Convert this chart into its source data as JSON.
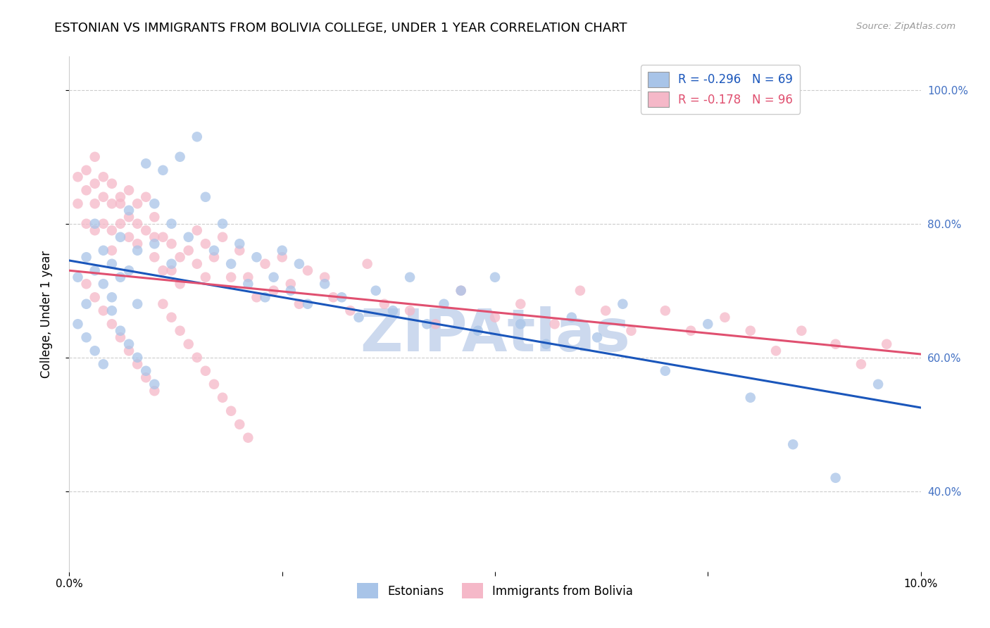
{
  "title": "ESTONIAN VS IMMIGRANTS FROM BOLIVIA COLLEGE, UNDER 1 YEAR CORRELATION CHART",
  "source": "Source: ZipAtlas.com",
  "ylabel_text": "College, Under 1 year",
  "x_min": 0.0,
  "x_max": 0.1,
  "y_min": 0.28,
  "y_max": 1.05,
  "y_ticks": [
    0.4,
    0.6,
    0.8,
    1.0
  ],
  "y_tick_labels": [
    "40.0%",
    "60.0%",
    "80.0%",
    "100.0%"
  ],
  "x_ticks": [
    0.0,
    0.025,
    0.05,
    0.075,
    0.1
  ],
  "x_tick_labels": [
    "0.0%",
    "",
    "",
    "",
    "10.0%"
  ],
  "estonians": {
    "color": "#a8c4e8",
    "line_color": "#1a56bb",
    "trend_x": [
      0.0,
      0.1
    ],
    "trend_y": [
      0.745,
      0.525
    ],
    "x": [
      0.001,
      0.002,
      0.002,
      0.003,
      0.003,
      0.004,
      0.004,
      0.005,
      0.005,
      0.006,
      0.006,
      0.007,
      0.007,
      0.008,
      0.008,
      0.009,
      0.01,
      0.01,
      0.011,
      0.012,
      0.012,
      0.013,
      0.014,
      0.015,
      0.016,
      0.017,
      0.018,
      0.019,
      0.02,
      0.021,
      0.022,
      0.023,
      0.024,
      0.025,
      0.026,
      0.027,
      0.028,
      0.03,
      0.032,
      0.034,
      0.036,
      0.038,
      0.04,
      0.042,
      0.044,
      0.046,
      0.048,
      0.05,
      0.053,
      0.056,
      0.059,
      0.062,
      0.065,
      0.07,
      0.075,
      0.08,
      0.085,
      0.09,
      0.095,
      0.001,
      0.002,
      0.003,
      0.004,
      0.005,
      0.006,
      0.007,
      0.008,
      0.009,
      0.01
    ],
    "y": [
      0.72,
      0.75,
      0.68,
      0.8,
      0.73,
      0.76,
      0.71,
      0.74,
      0.69,
      0.78,
      0.72,
      0.82,
      0.73,
      0.76,
      0.68,
      0.89,
      0.83,
      0.77,
      0.88,
      0.8,
      0.74,
      0.9,
      0.78,
      0.93,
      0.84,
      0.76,
      0.8,
      0.74,
      0.77,
      0.71,
      0.75,
      0.69,
      0.72,
      0.76,
      0.7,
      0.74,
      0.68,
      0.71,
      0.69,
      0.66,
      0.7,
      0.67,
      0.72,
      0.65,
      0.68,
      0.7,
      0.64,
      0.72,
      0.65,
      0.62,
      0.66,
      0.63,
      0.68,
      0.58,
      0.65,
      0.54,
      0.47,
      0.42,
      0.56,
      0.65,
      0.63,
      0.61,
      0.59,
      0.67,
      0.64,
      0.62,
      0.6,
      0.58,
      0.56
    ]
  },
  "bolivia": {
    "color": "#f5b8c8",
    "line_color": "#e05070",
    "trend_x": [
      0.0,
      0.1
    ],
    "trend_y": [
      0.73,
      0.605
    ],
    "x": [
      0.001,
      0.001,
      0.002,
      0.002,
      0.002,
      0.003,
      0.003,
      0.003,
      0.003,
      0.004,
      0.004,
      0.004,
      0.005,
      0.005,
      0.005,
      0.005,
      0.006,
      0.006,
      0.006,
      0.007,
      0.007,
      0.007,
      0.008,
      0.008,
      0.008,
      0.009,
      0.009,
      0.01,
      0.01,
      0.01,
      0.011,
      0.011,
      0.012,
      0.012,
      0.013,
      0.013,
      0.014,
      0.015,
      0.015,
      0.016,
      0.016,
      0.017,
      0.018,
      0.019,
      0.02,
      0.021,
      0.022,
      0.023,
      0.024,
      0.025,
      0.026,
      0.027,
      0.028,
      0.03,
      0.031,
      0.033,
      0.035,
      0.037,
      0.04,
      0.043,
      0.046,
      0.05,
      0.053,
      0.057,
      0.06,
      0.063,
      0.066,
      0.07,
      0.073,
      0.077,
      0.08,
      0.083,
      0.086,
      0.09,
      0.093,
      0.096,
      0.002,
      0.003,
      0.004,
      0.005,
      0.006,
      0.007,
      0.008,
      0.009,
      0.01,
      0.011,
      0.012,
      0.013,
      0.014,
      0.015,
      0.016,
      0.017,
      0.018,
      0.019,
      0.02,
      0.021
    ],
    "y": [
      0.87,
      0.83,
      0.88,
      0.85,
      0.8,
      0.9,
      0.86,
      0.83,
      0.79,
      0.87,
      0.84,
      0.8,
      0.86,
      0.83,
      0.79,
      0.76,
      0.83,
      0.8,
      0.84,
      0.85,
      0.78,
      0.81,
      0.8,
      0.77,
      0.83,
      0.79,
      0.84,
      0.78,
      0.81,
      0.75,
      0.78,
      0.73,
      0.77,
      0.73,
      0.75,
      0.71,
      0.76,
      0.79,
      0.74,
      0.77,
      0.72,
      0.75,
      0.78,
      0.72,
      0.76,
      0.72,
      0.69,
      0.74,
      0.7,
      0.75,
      0.71,
      0.68,
      0.73,
      0.72,
      0.69,
      0.67,
      0.74,
      0.68,
      0.67,
      0.65,
      0.7,
      0.66,
      0.68,
      0.65,
      0.7,
      0.67,
      0.64,
      0.67,
      0.64,
      0.66,
      0.64,
      0.61,
      0.64,
      0.62,
      0.59,
      0.62,
      0.71,
      0.69,
      0.67,
      0.65,
      0.63,
      0.61,
      0.59,
      0.57,
      0.55,
      0.68,
      0.66,
      0.64,
      0.62,
      0.6,
      0.58,
      0.56,
      0.54,
      0.52,
      0.5,
      0.48
    ]
  },
  "legend_R1": "R = -0.296",
  "legend_N1": "N = 69",
  "legend_R2": "R = -0.178",
  "legend_N2": "N = 96",
  "legend_color1": "#1a56bb",
  "legend_color2": "#e05070",
  "background_color": "#ffffff",
  "grid_color": "#cccccc",
  "title_fontsize": 13,
  "axis_label_fontsize": 12,
  "tick_fontsize": 11,
  "right_tick_color": "#4472c4",
  "watermark_text": "ZIPAtlas",
  "watermark_color": "#ccd9ee",
  "watermark_fontsize": 60
}
